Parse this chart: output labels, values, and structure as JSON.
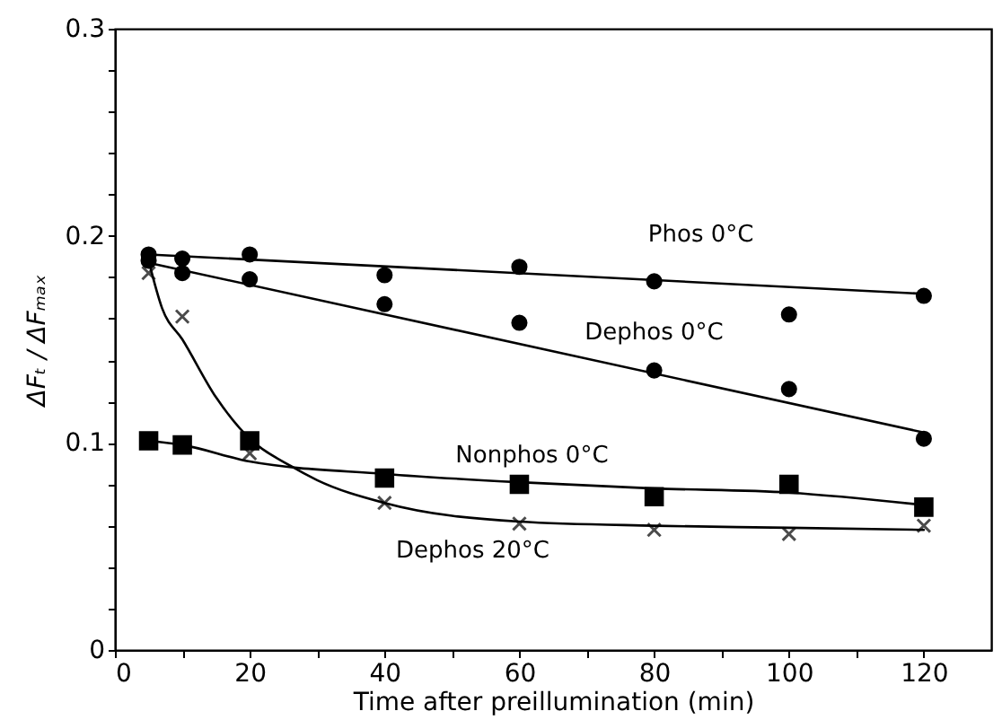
{
  "chart_data": {
    "type": "scatter",
    "xlabel": "Time after preillumination (min)",
    "ylabel": "ΔFₜ / ΔFₘₐₓ",
    "xlim": [
      0,
      130
    ],
    "ylim": [
      0,
      0.3
    ],
    "xticks": [
      0,
      {
        "value": 10,
        "label": null
      },
      20,
      {
        "value": 30,
        "label": null
      },
      40,
      {
        "value": 50,
        "label": null
      },
      60,
      {
        "value": 70,
        "label": null
      },
      80,
      {
        "value": 90,
        "label": null
      },
      100,
      {
        "value": 110,
        "label": null
      },
      120
    ],
    "yticks": [
      0,
      {
        "value": 0.02,
        "label": null
      },
      {
        "value": 0.04,
        "label": null
      },
      {
        "value": 0.06,
        "label": null
      },
      {
        "value": 0.08,
        "label": null
      },
      0.1,
      {
        "value": 0.12,
        "label": null
      },
      {
        "value": 0.14,
        "label": null
      },
      {
        "value": 0.16,
        "label": null
      },
      {
        "value": 0.18,
        "label": null
      },
      0.2,
      {
        "value": 0.22,
        "label": null
      },
      {
        "value": 0.24,
        "label": null
      },
      {
        "value": 0.26,
        "label": null
      },
      {
        "value": 0.28,
        "label": null
      },
      0.3
    ],
    "grid": false,
    "series": [
      {
        "name": "Phos 0°C",
        "marker": "circle",
        "color": "#000000",
        "x": [
          5,
          10,
          20,
          40,
          60,
          80,
          100,
          120
        ],
        "values": [
          0.191,
          0.189,
          0.191,
          0.181,
          0.185,
          0.178,
          0.162,
          0.171
        ]
      },
      {
        "name": "Dephos 0°C",
        "marker": "circle",
        "color": "#000000",
        "x": [
          5,
          10,
          20,
          40,
          60,
          80,
          100,
          120
        ],
        "values": [
          0.188,
          0.182,
          0.179,
          0.167,
          0.158,
          0.135,
          0.126,
          0.102
        ]
      },
      {
        "name": "Nonphos 0°C",
        "marker": "square",
        "color": "#000000",
        "x": [
          5,
          10,
          20,
          40,
          60,
          80,
          100,
          120
        ],
        "values": [
          0.101,
          0.099,
          0.101,
          0.083,
          0.08,
          0.074,
          0.08,
          0.069
        ]
      },
      {
        "name": "Dephos 20°C",
        "marker": "cross",
        "color": "#000000",
        "x": [
          5,
          10,
          20,
          40,
          60,
          80,
          100,
          120
        ],
        "values": [
          0.182,
          0.161,
          0.095,
          0.071,
          0.061,
          0.058,
          0.056,
          0.06
        ]
      },
      {
        "type": "line",
        "color": "#000000",
        "x": [
          5,
          120
        ],
        "values": [
          0.191,
          0.172
        ]
      },
      {
        "type": "line",
        "color": "#000000",
        "x": [
          5,
          120
        ],
        "values": [
          0.187,
          0.105
        ]
      },
      {
        "type": "line",
        "color": "#000000",
        "x": [
          5,
          10,
          20,
          40,
          60,
          80,
          100,
          120
        ],
        "values": [
          0.101,
          0.099,
          0.091,
          0.085,
          0.081,
          0.078,
          0.076,
          0.07
        ]
      },
      {
        "type": "line",
        "color": "#000000",
        "x": [
          5,
          7,
          10,
          15,
          20,
          26,
          30,
          40,
          60,
          80,
          100,
          120
        ],
        "values": [
          0.188,
          0.165,
          0.15,
          0.122,
          0.102,
          0.089,
          0.082,
          0.071,
          0.062,
          0.06,
          0.059,
          0.058
        ]
      }
    ]
  }
}
